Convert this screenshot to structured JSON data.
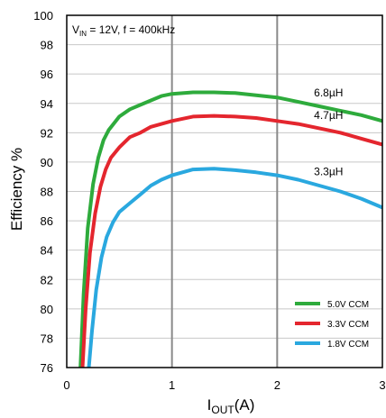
{
  "chart_data": {
    "type": "line",
    "xlabel": {
      "main": "I",
      "sub": "OUT",
      "tail": "(A)"
    },
    "ylabel": "Efficiency %",
    "xlim": [
      0,
      3
    ],
    "ylim": [
      76,
      100
    ],
    "xticks": [
      0,
      1,
      2,
      3
    ],
    "yticks": [
      76,
      78,
      80,
      82,
      84,
      86,
      88,
      90,
      92,
      94,
      96,
      98,
      100
    ],
    "grid": "vertical major lines at x = 1, 2",
    "annotation": {
      "v": "V",
      "v_sub": "IN",
      "rest": " = 12V, f = 400kHz"
    },
    "series": [
      {
        "name": "5.0V CCM",
        "color": "#2eab3c",
        "curve_label": "6.8µH",
        "x": [
          0.13,
          0.16,
          0.2,
          0.25,
          0.3,
          0.35,
          0.4,
          0.5,
          0.6,
          0.7,
          0.8,
          0.9,
          1.0,
          1.2,
          1.4,
          1.6,
          1.8,
          2.0,
          2.2,
          2.4,
          2.6,
          2.8,
          3.0
        ],
        "y": [
          76.0,
          81.0,
          85.5,
          88.5,
          90.3,
          91.5,
          92.2,
          93.1,
          93.6,
          93.9,
          94.2,
          94.5,
          94.65,
          94.75,
          94.75,
          94.7,
          94.55,
          94.4,
          94.1,
          93.8,
          93.5,
          93.2,
          92.8
        ]
      },
      {
        "name": "3.3V CCM",
        "color": "#e4262e",
        "curve_label": "4.7µH",
        "x": [
          0.15,
          0.18,
          0.22,
          0.27,
          0.32,
          0.37,
          0.42,
          0.5,
          0.6,
          0.7,
          0.8,
          0.9,
          1.0,
          1.2,
          1.4,
          1.6,
          1.8,
          2.0,
          2.2,
          2.4,
          2.6,
          2.8,
          3.0
        ],
        "y": [
          76.0,
          80.0,
          83.8,
          86.5,
          88.3,
          89.5,
          90.3,
          91.0,
          91.7,
          92.0,
          92.4,
          92.6,
          92.8,
          93.1,
          93.15,
          93.1,
          93.0,
          92.8,
          92.6,
          92.3,
          92.0,
          91.6,
          91.2
        ]
      },
      {
        "name": "1.8V CCM",
        "color": "#2aa8df",
        "curve_label": "3.3µH",
        "x": [
          0.21,
          0.24,
          0.28,
          0.33,
          0.38,
          0.44,
          0.5,
          0.6,
          0.7,
          0.8,
          0.9,
          1.0,
          1.2,
          1.4,
          1.6,
          1.8,
          2.0,
          2.2,
          2.4,
          2.6,
          2.8,
          3.0
        ],
        "y": [
          76.0,
          78.5,
          81.3,
          83.5,
          84.9,
          85.9,
          86.6,
          87.2,
          87.8,
          88.4,
          88.8,
          89.1,
          89.5,
          89.55,
          89.45,
          89.3,
          89.1,
          88.8,
          88.4,
          88.0,
          87.5,
          86.9
        ]
      }
    ],
    "legend": {
      "placement": "bottom-right",
      "entries": [
        "5.0V CCM",
        "3.3V CCM",
        "1.8V CCM"
      ]
    }
  }
}
